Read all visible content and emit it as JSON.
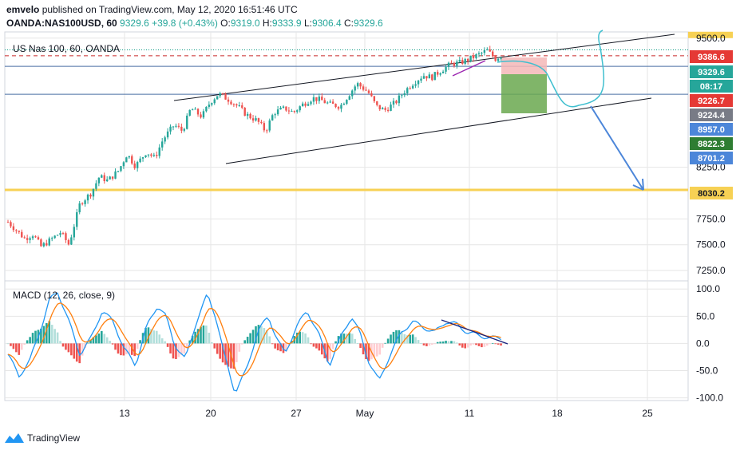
{
  "header": {
    "author": "emvelo",
    "published_text": "published on TradingView.com, May 12, 2020 16:51:46 UTC",
    "symbol": "OANDA:NAS100USD, 60",
    "open_label": "O:",
    "open": "9319.0",
    "high_label": "H:",
    "high": "9333.9",
    "low_label": "L:",
    "low": "9306.4",
    "close_label": "C:",
    "close": "9329.6",
    "last": "9329.6",
    "change": "+39.8 (+0.43%)"
  },
  "footer": {
    "brand": "TradingView"
  },
  "colors": {
    "up": "#26a69a",
    "down": "#ef5350",
    "grid": "#e6e6e6",
    "yellow": "#f7d154",
    "blue_arrow": "#4c86d9",
    "cyan_path": "#3fbfcf",
    "macd_line": "#2196f3",
    "signal_line": "#ff7f0e",
    "stop_zone": "#f4b7b7",
    "target_zone": "#6aa84f"
  },
  "chart_data": [
    {
      "type": "candlestick",
      "title": "US Nas 100, 60, OANDA",
      "x_tick_labels": [
        "13",
        "20",
        "27",
        "May",
        "11",
        "18",
        "25"
      ],
      "y_tick_labels": [
        "9500.0",
        "8250.0",
        "7750.0",
        "7500.0",
        "7250.0"
      ],
      "ylim": [
        7150,
        9560
      ],
      "horizontal_levels": [
        9226.7,
        8957.0,
        8030.2
      ],
      "price_labels": [
        {
          "text": "9386.6",
          "bg": "#e53935",
          "fg": "#ffffff"
        },
        {
          "text": "9329.6",
          "bg": "#26a69a",
          "fg": "#ffffff"
        },
        {
          "text": "08:17",
          "bg": "#26a69a",
          "fg": "#ffffff"
        },
        {
          "text": "9226.7",
          "bg": "#e53935",
          "fg": "#ffffff"
        },
        {
          "text": "9224.4",
          "bg": "#787b86",
          "fg": "#ffffff"
        },
        {
          "text": "8957.0",
          "bg": "#4c86d9",
          "fg": "#ffffff"
        },
        {
          "text": "8822.3",
          "bg": "#2e7d32",
          "fg": "#ffffff"
        },
        {
          "text": "8701.2",
          "bg": "#4c86d9",
          "fg": "#ffffff"
        },
        {
          "text": "8030.2",
          "bg": "#f7d154",
          "fg": "#131722"
        }
      ],
      "price_path": [
        [
          0,
          7720
        ],
        [
          3,
          7640
        ],
        [
          6,
          7560
        ],
        [
          9,
          7600
        ],
        [
          12,
          7480
        ],
        [
          16,
          7560
        ],
        [
          19,
          7620
        ],
        [
          22,
          7500
        ],
        [
          26,
          7900
        ],
        [
          30,
          8000
        ],
        [
          33,
          8160
        ],
        [
          36,
          8120
        ],
        [
          40,
          8220
        ],
        [
          43,
          8380
        ],
        [
          46,
          8260
        ],
        [
          50,
          8400
        ],
        [
          53,
          8340
        ],
        [
          56,
          8520
        ],
        [
          60,
          8660
        ],
        [
          63,
          8600
        ],
        [
          66,
          8820
        ],
        [
          70,
          8740
        ],
        [
          73,
          8880
        ],
        [
          76,
          8960
        ],
        [
          80,
          8900
        ],
        [
          83,
          8840
        ],
        [
          86,
          8760
        ],
        [
          90,
          8700
        ],
        [
          93,
          8600
        ],
        [
          96,
          8780
        ],
        [
          100,
          8820
        ],
        [
          103,
          8780
        ],
        [
          106,
          8850
        ],
        [
          110,
          8920
        ],
        [
          113,
          8900
        ],
        [
          116,
          8860
        ],
        [
          120,
          8840
        ],
        [
          123,
          8950
        ],
        [
          126,
          9060
        ],
        [
          130,
          8980
        ],
        [
          133,
          8840
        ],
        [
          136,
          8800
        ],
        [
          140,
          8880
        ],
        [
          143,
          8980
        ],
        [
          146,
          9060
        ],
        [
          150,
          9140
        ],
        [
          153,
          9120
        ],
        [
          156,
          9180
        ],
        [
          160,
          9250
        ],
        [
          163,
          9260
        ],
        [
          166,
          9290
        ],
        [
          170,
          9340
        ],
        [
          173,
          9380
        ],
        [
          176,
          9300
        ],
        [
          178,
          9329.6
        ]
      ],
      "candle_count": 180
    },
    {
      "type": "macd",
      "title": "MACD (12, 26, close, 9)",
      "x_tick_labels": [
        "13",
        "20",
        "27",
        "May",
        "11",
        "18",
        "25"
      ],
      "y_tick_labels": [
        "100.0",
        "50.0",
        "0.0",
        "-50.0",
        "-100.0"
      ],
      "ylim": [
        -105,
        115
      ],
      "macd": [
        [
          0,
          -20
        ],
        [
          4,
          -60
        ],
        [
          8,
          -30
        ],
        [
          12,
          30
        ],
        [
          15,
          80
        ],
        [
          18,
          95
        ],
        [
          22,
          40
        ],
        [
          26,
          -20
        ],
        [
          30,
          10
        ],
        [
          34,
          60
        ],
        [
          38,
          40
        ],
        [
          42,
          -10
        ],
        [
          46,
          -40
        ],
        [
          50,
          30
        ],
        [
          54,
          70
        ],
        [
          57,
          50
        ],
        [
          60,
          0
        ],
        [
          64,
          -30
        ],
        [
          68,
          40
        ],
        [
          72,
          90
        ],
        [
          75,
          50
        ],
        [
          78,
          -20
        ],
        [
          82,
          -90
        ],
        [
          86,
          -50
        ],
        [
          90,
          20
        ],
        [
          94,
          50
        ],
        [
          97,
          10
        ],
        [
          100,
          -20
        ],
        [
          104,
          30
        ],
        [
          108,
          60
        ],
        [
          112,
          20
        ],
        [
          116,
          -40
        ],
        [
          120,
          10
        ],
        [
          124,
          50
        ],
        [
          127,
          20
        ],
        [
          130,
          -30
        ],
        [
          134,
          -70
        ],
        [
          138,
          -20
        ],
        [
          142,
          20
        ],
        [
          146,
          40
        ],
        [
          150,
          30
        ],
        [
          154,
          20
        ],
        [
          158,
          40
        ],
        [
          162,
          35
        ],
        [
          166,
          20
        ],
        [
          170,
          15
        ],
        [
          174,
          10
        ],
        [
          178,
          10
        ]
      ]
    }
  ]
}
